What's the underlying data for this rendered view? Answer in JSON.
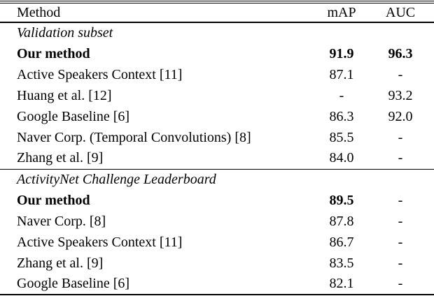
{
  "colors": {
    "background": "#ffffff",
    "text": "#000000",
    "rule": "#000000"
  },
  "table": {
    "columns": [
      "Method",
      "mAP",
      "AUC"
    ],
    "sections": [
      {
        "title": "Validation subset",
        "rows": [
          {
            "method": "Our method",
            "map": "91.9",
            "auc": "96.3",
            "bold": true
          },
          {
            "method": "Active Speakers Context [11]",
            "map": "87.1",
            "auc": "-",
            "bold": false
          },
          {
            "method": "Huang et al. [12]",
            "map": "-",
            "auc": "93.2",
            "bold": false
          },
          {
            "method": "Google Baseline [6]",
            "map": "86.3",
            "auc": "92.0",
            "bold": false
          },
          {
            "method": "Naver Corp. (Temporal Convolutions) [8]",
            "map": "85.5",
            "auc": "-",
            "bold": false
          },
          {
            "method": "Zhang et al. [9]",
            "map": "84.0",
            "auc": "-",
            "bold": false
          }
        ]
      },
      {
        "title": "ActivityNet Challenge Leaderboard",
        "rows": [
          {
            "method": "Our method",
            "map": "89.5",
            "auc": "-",
            "bold": true
          },
          {
            "method": "Naver Corp. [8]",
            "map": "87.8",
            "auc": "-",
            "bold": false
          },
          {
            "method": "Active Speakers Context [11]",
            "map": "86.7",
            "auc": "-",
            "bold": false
          },
          {
            "method": "Zhang et al. [9]",
            "map": "83.5",
            "auc": "-",
            "bold": false
          },
          {
            "method": "Google Baseline [6]",
            "map": "82.1",
            "auc": "-",
            "bold": false
          }
        ]
      }
    ]
  }
}
